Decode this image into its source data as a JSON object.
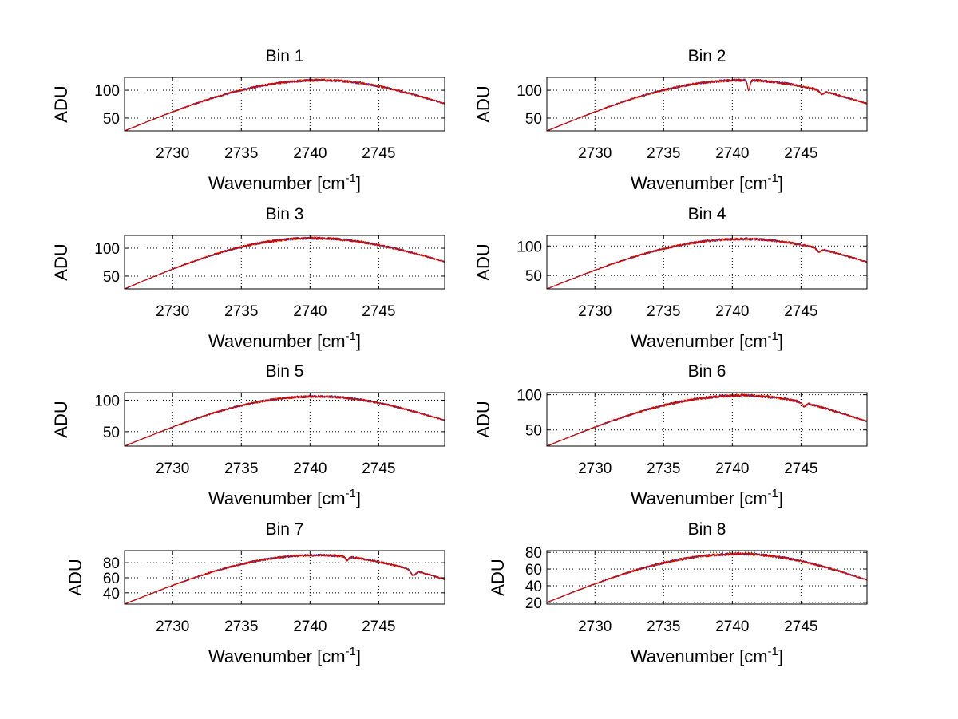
{
  "chart_data": [
    {
      "type": "line",
      "title": "Bin 1",
      "xlabel": "Wavenumber [cm",
      "xlabel_sup": "-1",
      "xlabel_suffix": "]",
      "ylabel": "ADU",
      "xlim": [
        2726.5,
        2749.8
      ],
      "ylim": [
        27,
        123
      ],
      "xticks": [
        2730,
        2735,
        2740,
        2745
      ],
      "yticks": [
        50,
        100
      ],
      "series": [
        {
          "color": "#ff8800",
          "shape": {
            "start": 27,
            "peak": 118,
            "peak_x": 2740.8,
            "end": 76,
            "noise": 2.6,
            "dips": []
          }
        },
        {
          "color": "#2b3fbf",
          "shape": {
            "start": 27,
            "peak": 118,
            "peak_x": 2740.8,
            "end": 76,
            "noise": 2.6,
            "dips": []
          }
        },
        {
          "color": "#d40000",
          "shape": {
            "start": 27,
            "peak": 118,
            "peak_x": 2740.8,
            "end": 76,
            "noise": 2.6,
            "dips": []
          }
        }
      ]
    },
    {
      "type": "line",
      "title": "Bin 2",
      "xlabel": "Wavenumber [cm",
      "xlabel_sup": "-1",
      "xlabel_suffix": "]",
      "ylabel": "ADU",
      "xlim": [
        2726.5,
        2749.8
      ],
      "ylim": [
        27,
        123
      ],
      "xticks": [
        2730,
        2735,
        2740,
        2745
      ],
      "yticks": [
        50,
        100
      ],
      "series": [
        {
          "color": "#ff8800",
          "shape": {
            "start": 27,
            "peak": 118,
            "peak_x": 2740.8,
            "end": 76,
            "noise": 2.6,
            "dips": [
              {
                "x": 2741.2,
                "depth": 18,
                "width": 0.12
              },
              {
                "x": 2746.5,
                "depth": 6,
                "width": 0.2
              }
            ]
          }
        },
        {
          "color": "#2b3fbf",
          "shape": {
            "start": 27,
            "peak": 118,
            "peak_x": 2740.8,
            "end": 76,
            "noise": 2.6,
            "dips": [
              {
                "x": 2741.2,
                "depth": 18,
                "width": 0.12
              },
              {
                "x": 2746.5,
                "depth": 6,
                "width": 0.2
              }
            ]
          }
        },
        {
          "color": "#d40000",
          "shape": {
            "start": 27,
            "peak": 118,
            "peak_x": 2740.8,
            "end": 76,
            "noise": 2.6,
            "dips": [
              {
                "x": 2741.2,
                "depth": 18,
                "width": 0.12
              },
              {
                "x": 2746.5,
                "depth": 6,
                "width": 0.2
              }
            ]
          }
        }
      ]
    },
    {
      "type": "line",
      "title": "Bin 3",
      "xlabel": "Wavenumber [cm",
      "xlabel_sup": "-1",
      "xlabel_suffix": "]",
      "ylabel": "ADU",
      "xlim": [
        2726.5,
        2749.8
      ],
      "ylim": [
        27,
        123
      ],
      "xticks": [
        2730,
        2735,
        2740,
        2745
      ],
      "yticks": [
        50,
        100
      ],
      "series": [
        {
          "color": "#ff8800",
          "shape": {
            "start": 27,
            "peak": 118,
            "peak_x": 2740.2,
            "end": 76,
            "noise": 2.6,
            "dips": []
          }
        },
        {
          "color": "#2b3fbf",
          "shape": {
            "start": 27,
            "peak": 118,
            "peak_x": 2740.2,
            "end": 76,
            "noise": 2.6,
            "dips": []
          }
        },
        {
          "color": "#d40000",
          "shape": {
            "start": 27,
            "peak": 118,
            "peak_x": 2740.2,
            "end": 76,
            "noise": 2.6,
            "dips": []
          }
        }
      ]
    },
    {
      "type": "line",
      "title": "Bin 4",
      "xlabel": "Wavenumber [cm",
      "xlabel_sup": "-1",
      "xlabel_suffix": "]",
      "ylabel": "ADU",
      "xlim": [
        2726.5,
        2749.8
      ],
      "ylim": [
        27,
        118
      ],
      "xticks": [
        2730,
        2735,
        2740,
        2745
      ],
      "yticks": [
        50,
        100
      ],
      "series": [
        {
          "color": "#ff8800",
          "shape": {
            "start": 27,
            "peak": 112,
            "peak_x": 2740.8,
            "end": 73,
            "noise": 2.4,
            "dips": [
              {
                "x": 2746.3,
                "depth": 5,
                "width": 0.2
              }
            ]
          }
        },
        {
          "color": "#2b3fbf",
          "shape": {
            "start": 27,
            "peak": 112,
            "peak_x": 2740.8,
            "end": 73,
            "noise": 2.4,
            "dips": [
              {
                "x": 2746.3,
                "depth": 5,
                "width": 0.2
              }
            ]
          }
        },
        {
          "color": "#d40000",
          "shape": {
            "start": 27,
            "peak": 112,
            "peak_x": 2740.8,
            "end": 73,
            "noise": 2.4,
            "dips": [
              {
                "x": 2746.3,
                "depth": 5,
                "width": 0.2
              }
            ]
          }
        }
      ]
    },
    {
      "type": "line",
      "title": "Bin 5",
      "xlabel": "Wavenumber [cm",
      "xlabel_sup": "-1",
      "xlabel_suffix": "]",
      "ylabel": "ADU",
      "xlim": [
        2726.5,
        2749.8
      ],
      "ylim": [
        27,
        112
      ],
      "xticks": [
        2730,
        2735,
        2740,
        2745
      ],
      "yticks": [
        50,
        100
      ],
      "series": [
        {
          "color": "#ff8800",
          "shape": {
            "start": 27,
            "peak": 106,
            "peak_x": 2740.5,
            "end": 68,
            "noise": 2.2,
            "dips": []
          }
        },
        {
          "color": "#2b3fbf",
          "shape": {
            "start": 27,
            "peak": 106,
            "peak_x": 2740.5,
            "end": 68,
            "noise": 2.2,
            "dips": []
          }
        },
        {
          "color": "#d40000",
          "shape": {
            "start": 27,
            "peak": 106,
            "peak_x": 2740.5,
            "end": 68,
            "noise": 2.2,
            "dips": []
          }
        }
      ]
    },
    {
      "type": "line",
      "title": "Bin 6",
      "xlabel": "Wavenumber [cm",
      "xlabel_sup": "-1",
      "xlabel_suffix": "]",
      "ylabel": "ADU",
      "xlim": [
        2726.5,
        2749.8
      ],
      "ylim": [
        27,
        103
      ],
      "xticks": [
        2730,
        2735,
        2740,
        2745
      ],
      "yticks": [
        50,
        100
      ],
      "series": [
        {
          "color": "#ff8800",
          "shape": {
            "start": 27,
            "peak": 99,
            "peak_x": 2740.8,
            "end": 62,
            "noise": 2.2,
            "dips": [
              {
                "x": 2745.2,
                "depth": 5,
                "width": 0.2
              }
            ]
          }
        },
        {
          "color": "#2b3fbf",
          "shape": {
            "start": 27,
            "peak": 99,
            "peak_x": 2740.8,
            "end": 62,
            "noise": 2.2,
            "dips": [
              {
                "x": 2745.2,
                "depth": 5,
                "width": 0.2
              }
            ]
          }
        },
        {
          "color": "#d40000",
          "shape": {
            "start": 27,
            "peak": 99,
            "peak_x": 2740.8,
            "end": 62,
            "noise": 2.2,
            "dips": [
              {
                "x": 2745.2,
                "depth": 5,
                "width": 0.2
              }
            ]
          }
        }
      ]
    },
    {
      "type": "line",
      "title": "Bin 7",
      "xlabel": "Wavenumber [cm",
      "xlabel_sup": "-1",
      "xlabel_suffix": "]",
      "ylabel": "ADU",
      "xlim": [
        2726.5,
        2749.8
      ],
      "ylim": [
        25,
        96
      ],
      "xticks": [
        2730,
        2735,
        2740,
        2745
      ],
      "yticks": [
        40,
        60,
        80
      ],
      "series": [
        {
          "color": "#ff8800",
          "shape": {
            "start": 25,
            "peak": 90,
            "peak_x": 2740.5,
            "end": 58,
            "noise": 1.8,
            "dips": [
              {
                "x": 2742.7,
                "depth": 5,
                "width": 0.15
              },
              {
                "x": 2747.5,
                "depth": 7,
                "width": 0.25
              }
            ]
          }
        },
        {
          "color": "#2b3fbf",
          "shape": {
            "start": 25,
            "peak": 90,
            "peak_x": 2740.5,
            "end": 58,
            "noise": 1.8,
            "dips": [
              {
                "x": 2742.7,
                "depth": 5,
                "width": 0.15
              },
              {
                "x": 2747.5,
                "depth": 7,
                "width": 0.25
              }
            ]
          }
        },
        {
          "color": "#d40000",
          "shape": {
            "start": 25,
            "peak": 90,
            "peak_x": 2740.5,
            "end": 58,
            "noise": 1.8,
            "dips": [
              {
                "x": 2742.7,
                "depth": 5,
                "width": 0.15
              },
              {
                "x": 2747.5,
                "depth": 7,
                "width": 0.25
              }
            ]
          }
        }
      ]
    },
    {
      "type": "line",
      "title": "Bin 8",
      "xlabel": "Wavenumber [cm",
      "xlabel_sup": "-1",
      "xlabel_suffix": "]",
      "ylabel": "ADU",
      "xlim": [
        2726.5,
        2749.8
      ],
      "ylim": [
        18,
        82
      ],
      "xticks": [
        2730,
        2735,
        2740,
        2745
      ],
      "yticks": [
        20,
        40,
        60,
        80
      ],
      "series": [
        {
          "color": "#ff8800",
          "shape": {
            "start": 20,
            "peak": 78,
            "peak_x": 2740.5,
            "end": 47,
            "noise": 1.8,
            "dips": []
          }
        },
        {
          "color": "#2b3fbf",
          "shape": {
            "start": 20,
            "peak": 78,
            "peak_x": 2740.5,
            "end": 47,
            "noise": 1.8,
            "dips": []
          }
        },
        {
          "color": "#d40000",
          "shape": {
            "start": 20,
            "peak": 78,
            "peak_x": 2740.5,
            "end": 47,
            "noise": 1.8,
            "dips": []
          }
        }
      ]
    }
  ]
}
